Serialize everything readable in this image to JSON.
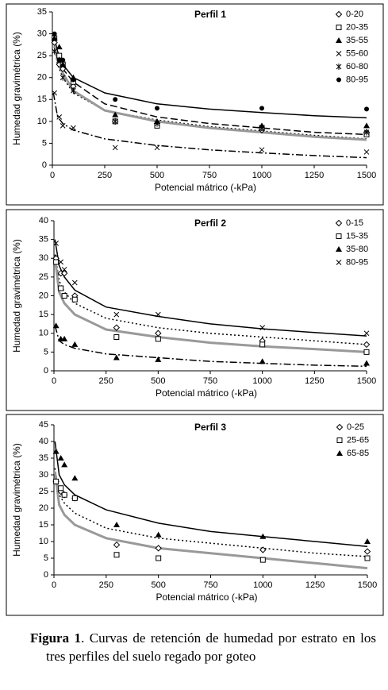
{
  "chart_data": [
    {
      "type": "scatter",
      "title": "Perfil 1",
      "x_label": "Potencial mátrico (-kPa)",
      "y_label": "Humedad gravimétrica (%)",
      "xlim": [
        0,
        1500
      ],
      "xticks": [
        0,
        250,
        500,
        750,
        1000,
        1250,
        1500
      ],
      "ylim": [
        0,
        35
      ],
      "yticks": [
        0,
        5,
        10,
        15,
        20,
        25,
        30,
        35
      ],
      "x": [
        10,
        33,
        50,
        100,
        300,
        500,
        1000,
        1500
      ],
      "series": [
        {
          "name": "0-20",
          "marker": "diamond-open",
          "color": "#000000",
          "values": [
            28,
            23,
            22,
            18,
            10,
            9.5,
            8,
            7.5
          ]
        },
        {
          "name": "20-35",
          "marker": "square-open",
          "color": "#000000",
          "values": [
            29,
            25,
            23,
            19,
            10,
            9,
            8.5,
            7
          ]
        },
        {
          "name": "35-55",
          "marker": "triangle",
          "color": "#000000",
          "values": [
            29,
            27,
            23,
            20,
            11.5,
            10,
            9,
            9
          ]
        },
        {
          "name": "55-60",
          "marker": "cross",
          "color": "#000000",
          "values": [
            16.5,
            11,
            9,
            8.5,
            4,
            4,
            3.5,
            3
          ]
        },
        {
          "name": "60-80",
          "marker": "asterisk",
          "color": "#000000",
          "values": [
            26,
            24,
            20,
            17,
            10,
            9.5,
            8.5,
            7.5
          ]
        },
        {
          "name": "80-95",
          "marker": "circle",
          "color": "#000000",
          "values": [
            30,
            24,
            24,
            19.5,
            15,
            13,
            13,
            12.8
          ]
        }
      ],
      "fit_x": [
        5,
        25,
        50,
        100,
        250,
        500,
        750,
        1000,
        1250,
        1500
      ],
      "fits": [
        {
          "style": "solid",
          "values": [
            30,
            26,
            23,
            20,
            16.5,
            14,
            12.8,
            12,
            11.3,
            10.8
          ]
        },
        {
          "style": "dash",
          "values": [
            29,
            25,
            22,
            19,
            14,
            11,
            9.5,
            8.5,
            7.5,
            7
          ]
        },
        {
          "style": "dot",
          "values": [
            28,
            23,
            20,
            16.5,
            12.5,
            10.3,
            8.8,
            7.8,
            6.8,
            6
          ]
        },
        {
          "style": "gray",
          "values": [
            29,
            24,
            21,
            17,
            12.5,
            10,
            8.5,
            7.5,
            6.5,
            5.8
          ]
        },
        {
          "style": "dashdot",
          "values": [
            16.5,
            11,
            9.5,
            8,
            6,
            4.5,
            3.5,
            2.8,
            2.2,
            1.7
          ]
        }
      ]
    },
    {
      "type": "scatter",
      "title": "Perfil 2",
      "x_label": "Potencial mátrico (-kPa)",
      "y_label": "Humedad gravimétrica (%)",
      "xlim": [
        0,
        1500
      ],
      "xticks": [
        0,
        250,
        500,
        750,
        1000,
        1250,
        1500
      ],
      "ylim": [
        0,
        40
      ],
      "yticks": [
        0,
        5,
        10,
        15,
        20,
        25,
        30,
        35,
        40
      ],
      "x": [
        10,
        33,
        50,
        100,
        300,
        500,
        1000,
        1500
      ],
      "series": [
        {
          "name": "0-15",
          "marker": "diamond-open",
          "color": "#000000",
          "values": [
            30,
            26,
            26,
            20,
            11.5,
            10,
            8,
            7
          ]
        },
        {
          "name": "15-35",
          "marker": "square-open",
          "color": "#000000",
          "values": [
            29,
            22,
            20,
            19,
            9,
            8.5,
            7,
            5
          ]
        },
        {
          "name": "35-80",
          "marker": "triangle",
          "color": "#000000",
          "values": [
            12,
            8.5,
            8.5,
            7,
            3.5,
            3,
            2.5,
            2
          ]
        },
        {
          "name": "80-95",
          "marker": "cross",
          "color": "#000000",
          "values": [
            34,
            29,
            27,
            23.5,
            15,
            15,
            11.5,
            10
          ]
        }
      ],
      "fit_x": [
        5,
        25,
        50,
        100,
        250,
        500,
        750,
        1000,
        1250,
        1500
      ],
      "fits": [
        {
          "style": "solid",
          "values": [
            35,
            28,
            25,
            21.5,
            17,
            14.5,
            12.5,
            11.2,
            10.2,
            9.3
          ]
        },
        {
          "style": "dot",
          "values": [
            31,
            24,
            21,
            18,
            14,
            11.5,
            10,
            9,
            8,
            7
          ]
        },
        {
          "style": "gray",
          "values": [
            30,
            21,
            18,
            15,
            11,
            9,
            7.5,
            6.5,
            5.8,
            5
          ]
        },
        {
          "style": "dashdot",
          "values": [
            12,
            8,
            7,
            6,
            4.5,
            3.5,
            2.5,
            2,
            1.5,
            1.2
          ]
        }
      ]
    },
    {
      "type": "scatter",
      "title": "Perfil 3",
      "x_label": "Potencial mátrico (-kPa)",
      "y_label": "Humedad gravimétrica (%)",
      "xlim": [
        0,
        1500
      ],
      "xticks": [
        0,
        250,
        500,
        750,
        1000,
        1250,
        1500
      ],
      "ylim": [
        0,
        45
      ],
      "yticks": [
        0,
        5,
        10,
        15,
        20,
        25,
        30,
        35,
        40,
        45
      ],
      "x": [
        10,
        33,
        50,
        100,
        300,
        500,
        1000,
        1500
      ],
      "series": [
        {
          "name": "0-25",
          "marker": "diamond-open",
          "color": "#000000",
          "values": [
            28,
            25,
            24,
            23,
            9,
            8,
            7.5,
            7
          ]
        },
        {
          "name": "25-65",
          "marker": "square-open",
          "color": "#000000",
          "values": [
            28,
            26,
            24,
            23,
            6,
            5,
            4.5,
            5
          ]
        },
        {
          "name": "65-85",
          "marker": "triangle",
          "color": "#000000",
          "values": [
            37,
            35,
            33,
            29,
            15,
            12,
            11.5,
            10
          ]
        }
      ],
      "fit_x": [
        5,
        25,
        50,
        100,
        250,
        500,
        750,
        1000,
        1250,
        1500
      ],
      "fits": [
        {
          "style": "solid",
          "values": [
            40,
            30,
            27,
            24,
            19.5,
            15.5,
            13,
            11.5,
            10,
            8.5
          ]
        },
        {
          "style": "dot",
          "values": [
            32,
            24,
            21.5,
            18.5,
            14,
            11,
            9.5,
            8,
            6.5,
            5.5
          ]
        },
        {
          "style": "gray",
          "values": [
            31,
            21,
            18,
            15,
            11,
            8,
            6.5,
            5,
            3.5,
            2
          ]
        }
      ]
    }
  ],
  "caption": {
    "label": "Figura 1",
    "text": ". Curvas de retención de humedad por estrato en los tres perfiles del suelo regado por goteo"
  }
}
